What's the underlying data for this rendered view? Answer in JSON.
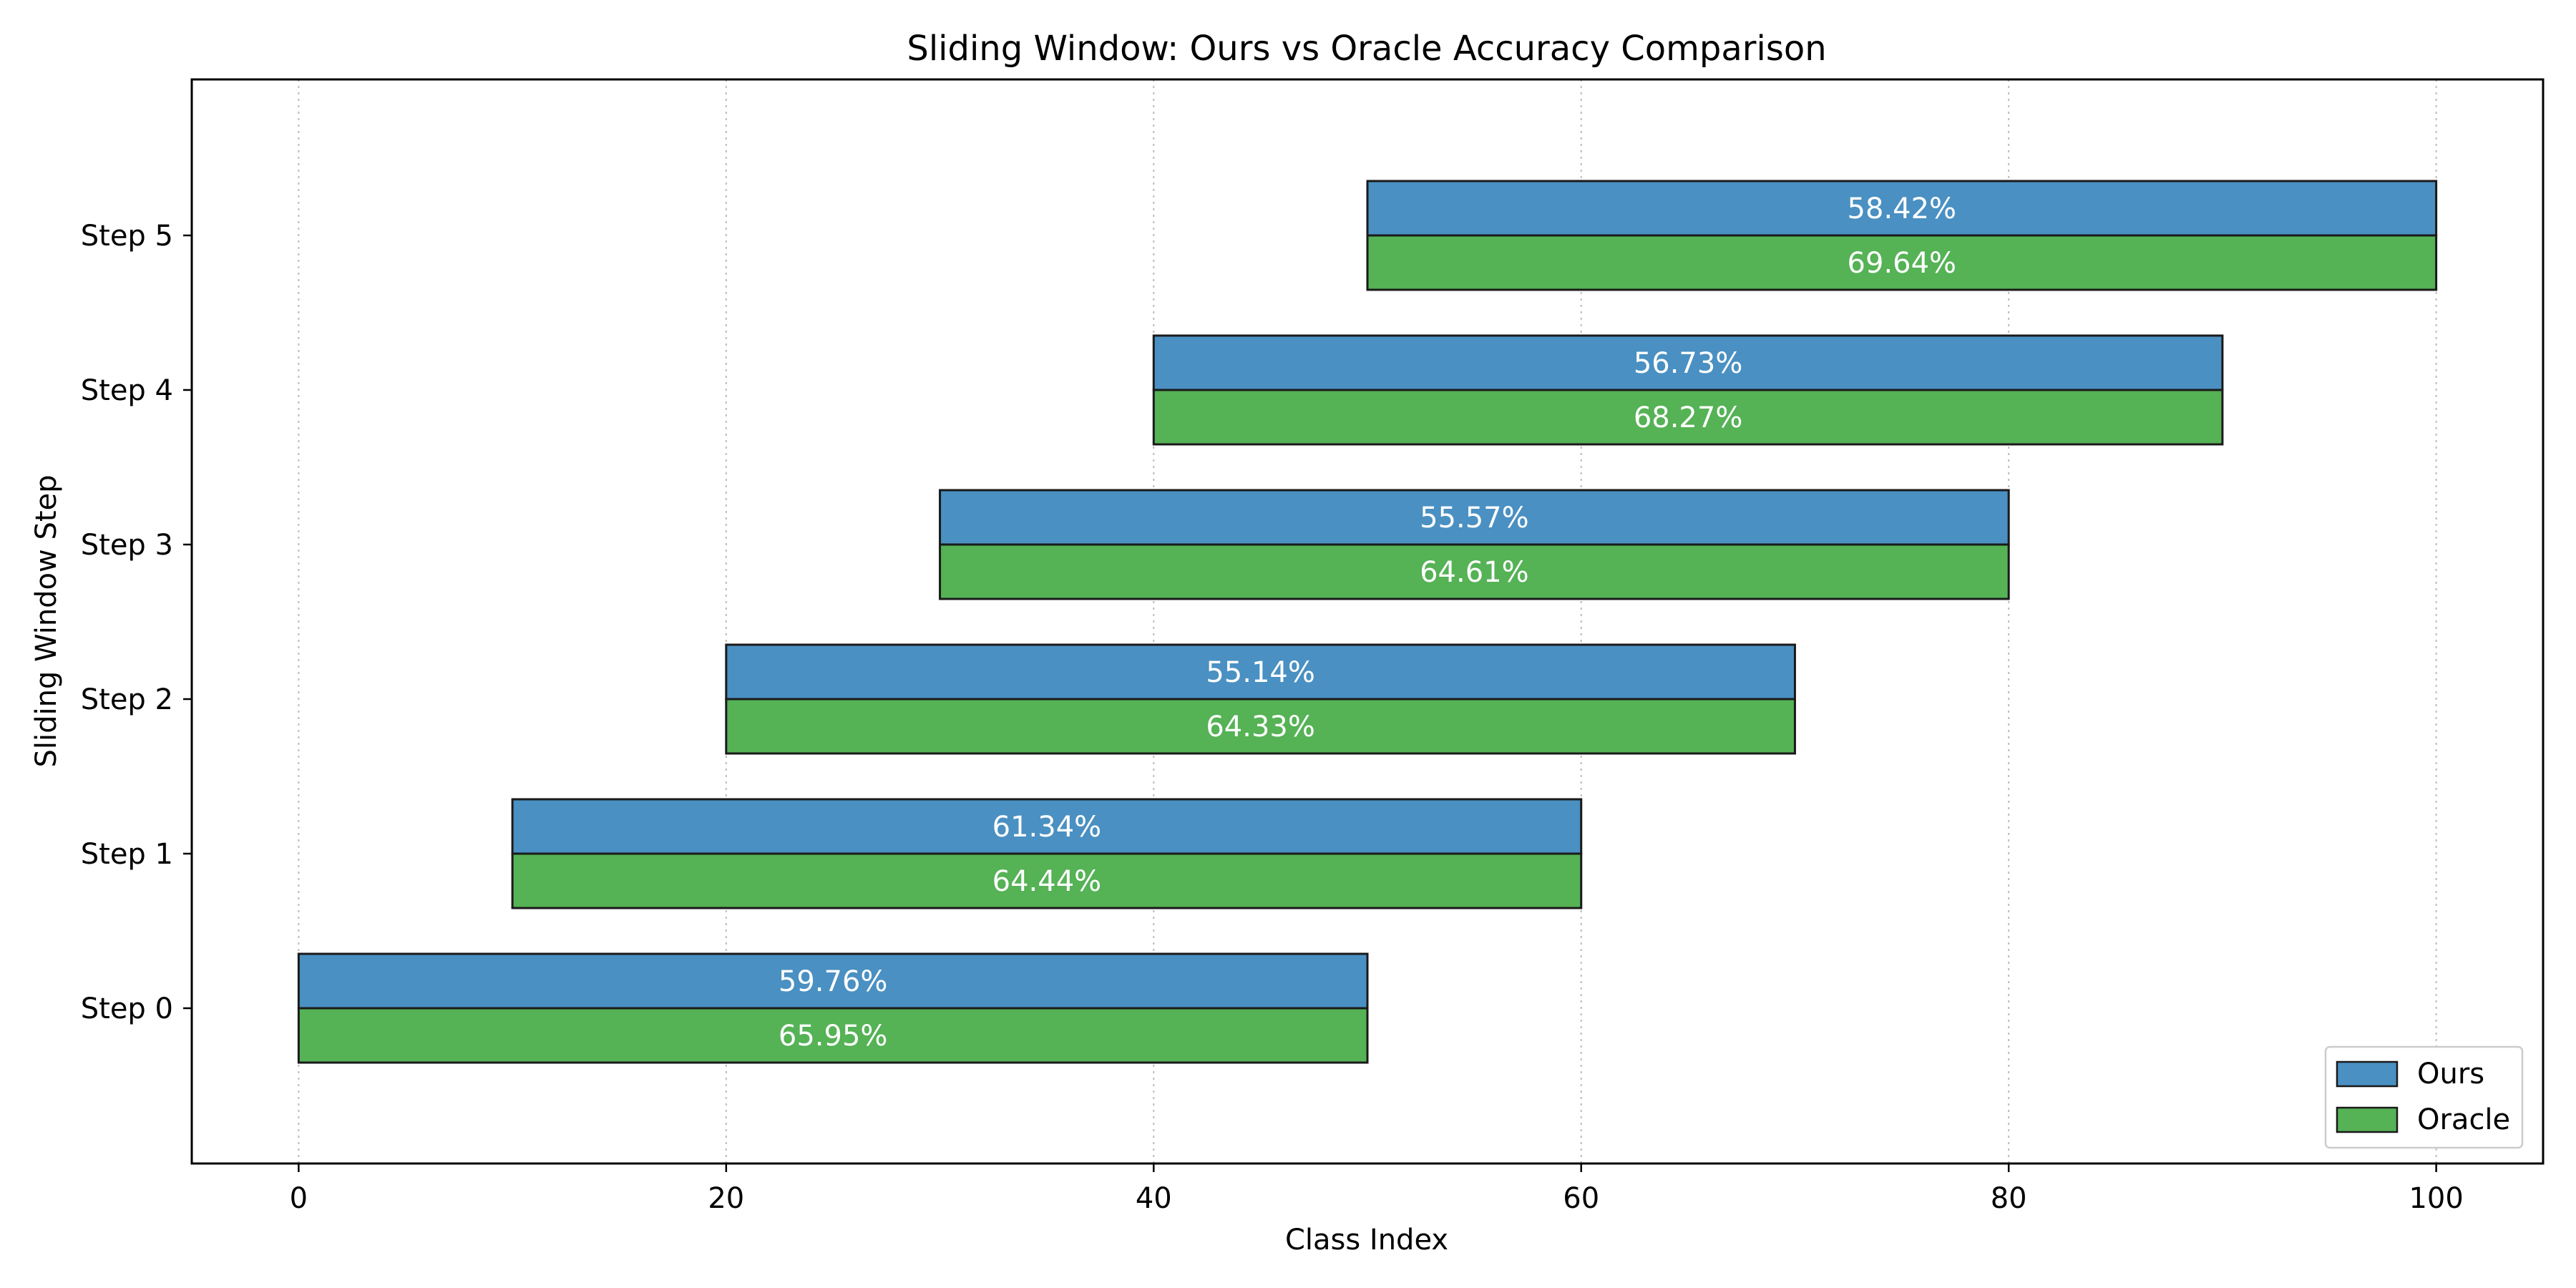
{
  "chart_data": {
    "type": "bar",
    "orientation": "horizontal-range",
    "title": "Sliding Window: Ours vs Oracle Accuracy Comparison",
    "xlabel": "Class Index",
    "ylabel": "Sliding Window Step",
    "xlim": [
      -5,
      105
    ],
    "xticks": [
      "0",
      "20",
      "40",
      "60",
      "80",
      "100"
    ],
    "grid": "x-dotted",
    "legend_position": "bottom-right",
    "categories": [
      "Step 0",
      "Step 1",
      "Step 2",
      "Step 3",
      "Step 4",
      "Step 5"
    ],
    "ranges": [
      [
        0,
        50
      ],
      [
        10,
        60
      ],
      [
        20,
        70
      ],
      [
        30,
        80
      ],
      [
        40,
        90
      ],
      [
        50,
        100
      ]
    ],
    "series": [
      {
        "name": "Ours",
        "color": "#4a90c2",
        "values": [
          59.76,
          61.34,
          55.14,
          55.57,
          56.73,
          58.42
        ],
        "labels": [
          "59.76%",
          "61.34%",
          "55.14%",
          "55.57%",
          "56.73%",
          "58.42%"
        ]
      },
      {
        "name": "Oracle",
        "color": "#55b255",
        "values": [
          65.95,
          64.44,
          64.33,
          64.61,
          68.27,
          69.64
        ],
        "labels": [
          "65.95%",
          "64.44%",
          "64.33%",
          "64.61%",
          "68.27%",
          "69.64%"
        ]
      }
    ]
  }
}
